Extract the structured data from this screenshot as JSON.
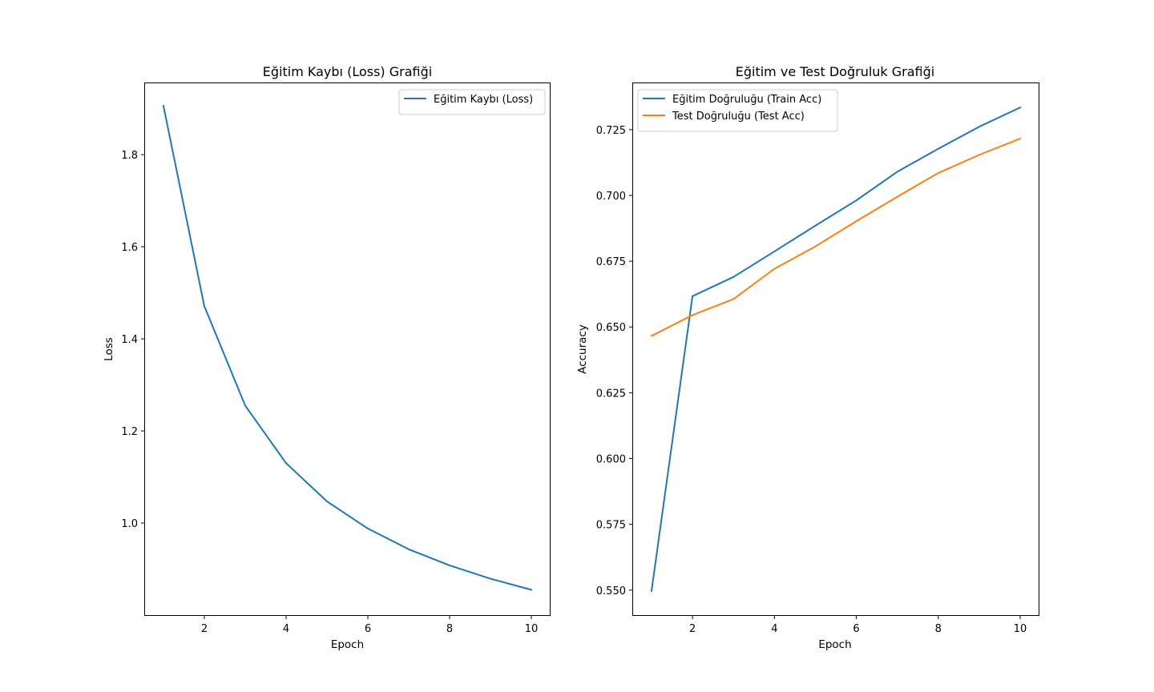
{
  "chart_data": [
    {
      "type": "line",
      "title": "Eğitim Kaybı (Loss) Grafiği",
      "xlabel": "Epoch",
      "ylabel": "Loss",
      "xlim": [
        0.55,
        10.45
      ],
      "ylim": [
        0.8,
        1.955
      ],
      "xticks": [
        2,
        4,
        6,
        8,
        10
      ],
      "xtick_labels": [
        "2",
        "4",
        "6",
        "8",
        "10"
      ],
      "yticks": [
        1.0,
        1.2,
        1.4,
        1.6,
        1.8
      ],
      "ytick_labels": [
        "1.0",
        "1.2",
        "1.4",
        "1.6",
        "1.8"
      ],
      "legend_placement": "upper right",
      "grid": false,
      "x": [
        1,
        2,
        3,
        4,
        5,
        6,
        7,
        8,
        9,
        10
      ],
      "series": [
        {
          "name": "Eğitim Kaybı (Loss)",
          "color": "#1f77b4",
          "values": [
            1.906,
            1.471,
            1.255,
            1.13,
            1.047,
            0.988,
            0.943,
            0.908,
            0.879,
            0.855
          ]
        }
      ]
    },
    {
      "type": "line",
      "title": "Eğitim ve Test Doğruluk Grafiği",
      "xlabel": "Epoch",
      "ylabel": "Accuracy",
      "xlim": [
        0.55,
        10.45
      ],
      "ylim": [
        0.5405,
        0.7426
      ],
      "xticks": [
        2,
        4,
        6,
        8,
        10
      ],
      "xtick_labels": [
        "2",
        "4",
        "6",
        "8",
        "10"
      ],
      "yticks": [
        0.55,
        0.575,
        0.6,
        0.625,
        0.65,
        0.675,
        0.7,
        0.725
      ],
      "ytick_labels": [
        "0.550",
        "0.575",
        "0.600",
        "0.625",
        "0.650",
        "0.675",
        "0.700",
        "0.725"
      ],
      "legend_placement": "upper left",
      "grid": false,
      "x": [
        1,
        2,
        3,
        4,
        5,
        6,
        7,
        8,
        9,
        10
      ],
      "series": [
        {
          "name": "Eğitim Doğruluğu (Train Acc)",
          "color": "#1f77b4",
          "values": [
            0.5497,
            0.6617,
            0.669,
            0.6787,
            0.6885,
            0.6981,
            0.709,
            0.7177,
            0.7261,
            0.7334
          ]
        },
        {
          "name": "Test Doğruluğu (Test Acc)",
          "color": "#ff7f0e",
          "values": [
            0.6466,
            0.6545,
            0.6606,
            0.6721,
            0.6806,
            0.6902,
            0.6995,
            0.7085,
            0.7154,
            0.7216
          ]
        }
      ]
    }
  ]
}
